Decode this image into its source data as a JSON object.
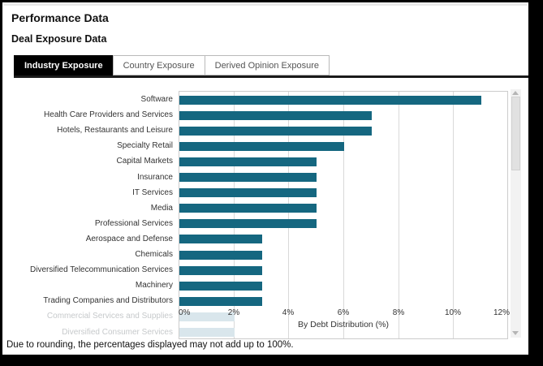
{
  "page": {
    "title": "Performance Data",
    "subtitle": "Deal Exposure Data",
    "footnote": "Due to rounding, the percentages displayed may not add up to 100%."
  },
  "tabs": [
    {
      "label": "Industry Exposure",
      "active": true
    },
    {
      "label": "Country Exposure",
      "active": false
    },
    {
      "label": "Derived Opinion Exposure",
      "active": false
    }
  ],
  "colors": {
    "bar": "#156780",
    "faded_bar": "#d9e6ec",
    "faded_label": "#c6c9cb",
    "active_tab_bg": "#000000",
    "gridline": "#d9d9d9"
  },
  "scrollbar": {
    "name": "vertical-scrollbar",
    "up_arrow": "triangle-up",
    "down_arrow": "triangle-down"
  },
  "chart_data": {
    "type": "bar",
    "orientation": "horizontal",
    "title": "",
    "xlabel": "By Debt Distribution (%)",
    "ylabel": "",
    "xlim": [
      0,
      12
    ],
    "grid": true,
    "x_ticks": [
      "0%",
      "2%",
      "4%",
      "6%",
      "8%",
      "10%",
      "12%"
    ],
    "categories": [
      "Software",
      "Health Care Providers and Services",
      "Hotels, Restaurants and Leisure",
      "Specialty Retail",
      "Capital Markets",
      "Insurance",
      "IT Services",
      "Media",
      "Professional Services",
      "Aerospace and Defense",
      "Chemicals",
      "Diversified Telecommunication Services",
      "Machinery",
      "Trading Companies and Distributors",
      "Commercial Services and Supplies",
      "Diversified Consumer Services"
    ],
    "values": [
      11,
      7,
      7,
      6,
      5,
      5,
      5,
      5,
      5,
      3,
      3,
      3,
      3,
      3,
      2,
      2
    ],
    "faded_from_index": 14,
    "bar_color": "#156780",
    "faded_bar_color": "#d9e6ec"
  }
}
